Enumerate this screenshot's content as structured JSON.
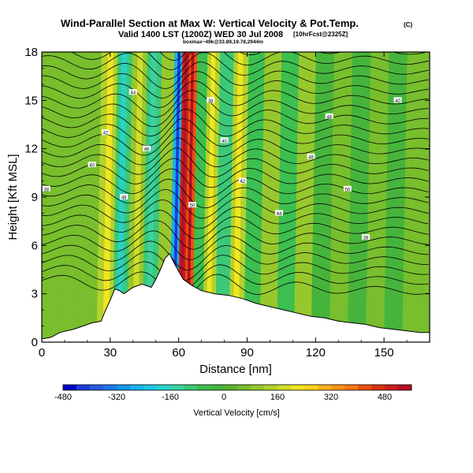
{
  "title": "Wind-Parallel Section at Max W: Vertical Velocity & Pot.Temp.",
  "title_mark": "(C)",
  "subtitle": "Valid 1400 LST (1200Z) WED 30 Jul 2008",
  "subtitle_run": "[10hrFcst@2325Z]",
  "subtitle2": "boxmax~49k@33.89,19.78,2944m",
  "chart_data": {
    "type": "heatmap",
    "xlabel": "Distance [nm]",
    "ylabel": "Height [Kft MSL]",
    "xlim": [
      0,
      170
    ],
    "ylim": [
      0,
      18
    ],
    "xticks": [
      "0",
      "30",
      "60",
      "90",
      "120",
      "150"
    ],
    "yticks": [
      "0",
      "3",
      "6",
      "9",
      "12",
      "15",
      "18"
    ],
    "terrain_kft": [
      [
        0,
        0.2
      ],
      [
        4,
        0.3
      ],
      [
        8,
        0.6
      ],
      [
        14,
        0.8
      ],
      [
        18,
        1.0
      ],
      [
        22,
        1.2
      ],
      [
        26,
        1.3
      ],
      [
        28,
        2.0
      ],
      [
        30,
        2.6
      ],
      [
        32,
        3.3
      ],
      [
        34,
        3.2
      ],
      [
        36,
        3.0
      ],
      [
        40,
        3.4
      ],
      [
        44,
        3.6
      ],
      [
        48,
        3.4
      ],
      [
        50,
        3.9
      ],
      [
        52,
        4.5
      ],
      [
        54,
        5.2
      ],
      [
        56,
        5.5
      ],
      [
        58,
        4.9
      ],
      [
        60,
        4.4
      ],
      [
        62,
        3.9
      ],
      [
        66,
        3.5
      ],
      [
        70,
        3.2
      ],
      [
        76,
        3.0
      ],
      [
        82,
        2.9
      ],
      [
        88,
        2.7
      ],
      [
        94,
        2.4
      ],
      [
        100,
        2.2
      ],
      [
        106,
        2.0
      ],
      [
        112,
        1.8
      ],
      [
        118,
        1.6
      ],
      [
        124,
        1.5
      ],
      [
        130,
        1.3
      ],
      [
        136,
        1.2
      ],
      [
        142,
        1.1
      ],
      [
        148,
        0.9
      ],
      [
        154,
        0.8
      ],
      [
        160,
        0.7
      ],
      [
        166,
        0.6
      ],
      [
        170,
        0.6
      ]
    ],
    "background_w_cms": 40,
    "w_bands_cms": [
      {
        "x": 4,
        "w": 60
      },
      {
        "x": 12,
        "w": 50
      },
      {
        "x": 20,
        "w": 70
      },
      {
        "x": 28,
        "w": 140
      },
      {
        "x": 34,
        "w": -120
      },
      {
        "x": 41,
        "w": 110
      },
      {
        "x": 47,
        "w": -100
      },
      {
        "x": 54,
        "w": 90
      },
      {
        "x": 58,
        "w": -260
      },
      {
        "x": 61,
        "w": 480
      },
      {
        "x": 64,
        "w": 400
      },
      {
        "x": 68,
        "w": -80
      },
      {
        "x": 73,
        "w": 140
      },
      {
        "x": 79,
        "w": -90
      },
      {
        "x": 85,
        "w": 130
      },
      {
        "x": 92,
        "w": -60
      },
      {
        "x": 99,
        "w": 90
      },
      {
        "x": 107,
        "w": -50
      },
      {
        "x": 114,
        "w": 80
      },
      {
        "x": 122,
        "w": -40
      },
      {
        "x": 130,
        "w": 70
      },
      {
        "x": 138,
        "w": -40
      },
      {
        "x": 146,
        "w": 60
      },
      {
        "x": 154,
        "w": -30
      },
      {
        "x": 162,
        "w": 50
      }
    ],
    "theta_labels": [
      "38",
      "40",
      "42",
      "44",
      "46",
      "48",
      "50"
    ],
    "colorbar": {
      "label": "Vertical Velocity [cm/s]",
      "range": [
        -480,
        560
      ],
      "step": 40,
      "ticks": [
        "-480",
        "-320",
        "-160",
        "0",
        "160",
        "320",
        "480"
      ],
      "colors": [
        "#0000c8",
        "#1e3cdc",
        "#285ae6",
        "#1e78f0",
        "#1496f0",
        "#14b4ec",
        "#1ec8e6",
        "#28d2c8",
        "#3cd2a0",
        "#3cc878",
        "#3cbe50",
        "#46b43c",
        "#5ab42d",
        "#78be2d",
        "#96c82d",
        "#b4d22d",
        "#d2dc28",
        "#f0e61e",
        "#ffd21e",
        "#ffb41e",
        "#ff9614",
        "#ff780f",
        "#f0500f",
        "#dc3214",
        "#c81e1e",
        "#b40f28"
      ]
    }
  }
}
